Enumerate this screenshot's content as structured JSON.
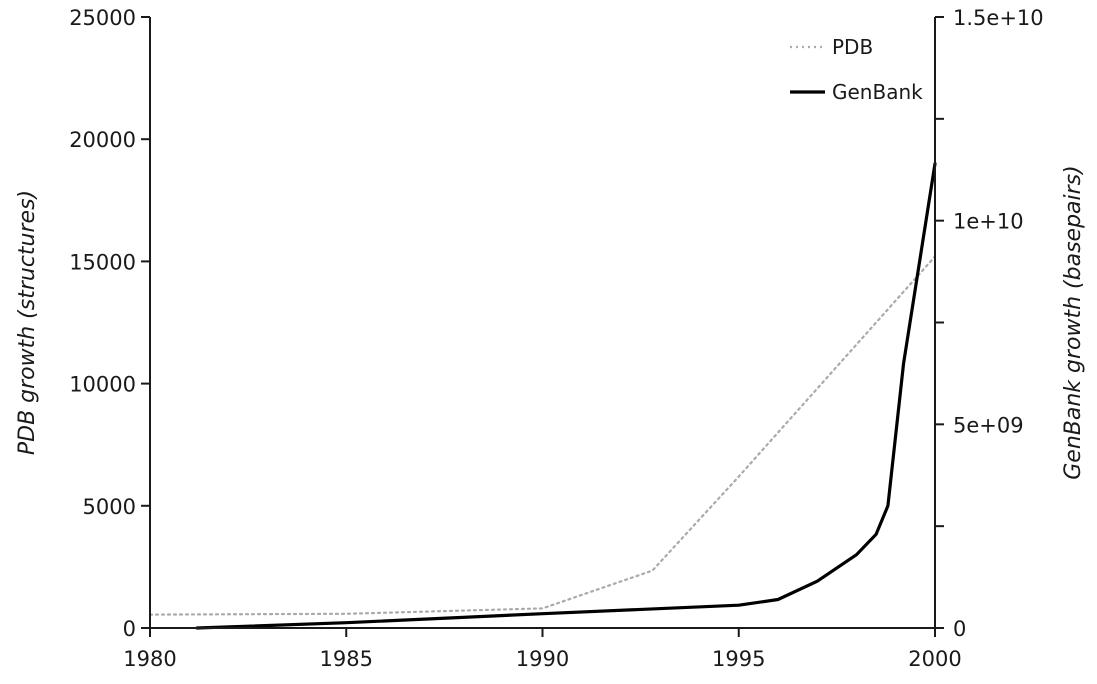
{
  "chart_data": {
    "type": "line",
    "title": "",
    "xlabel": "",
    "ylabel_left": "PDB growth (structures)",
    "ylabel_right": "GenBank growth (basepairs)",
    "xlim": [
      1980,
      2000
    ],
    "ylim_left": [
      0,
      25000
    ],
    "ylim_right": [
      0,
      15000000000
    ],
    "x_ticks": [
      1980,
      1985,
      1990,
      1995,
      2000
    ],
    "x_tick_labels": [
      "1980",
      "1985",
      "1990",
      "1995",
      "2000"
    ],
    "y_left_ticks": [
      0,
      5000,
      10000,
      15000,
      20000,
      25000
    ],
    "y_left_tick_labels": [
      "0",
      "5000",
      "10000",
      "15000",
      "20000",
      "25000"
    ],
    "y_right_ticks": [
      0,
      5000000000,
      10000000000,
      15000000000
    ],
    "y_right_tick_labels": [
      "0",
      "5e+09",
      "1e+10",
      "1.5e+10"
    ],
    "grid": false,
    "legend_position": "top-right",
    "series": [
      {
        "name": "PDB",
        "axis": "left",
        "style": "dotted",
        "color": "#aaaaaa",
        "x": [
          1980,
          1985,
          1990,
          1992.8,
          1995,
          2000
        ],
        "y": [
          550,
          580,
          800,
          2350,
          6200,
          15200
        ]
      },
      {
        "name": "GenBank",
        "axis": "right",
        "style": "solid",
        "color": "#000000",
        "x": [
          1981.2,
          1985,
          1990,
          1995,
          1996,
          1997,
          1998,
          1998.5,
          1998.8,
          1999.2,
          2000
        ],
        "y": [
          0,
          130000000,
          350000000,
          560000000,
          700000000,
          1150000000,
          1800000000,
          2300000000,
          3000000000,
          6500000000,
          11400000000
        ]
      }
    ]
  }
}
